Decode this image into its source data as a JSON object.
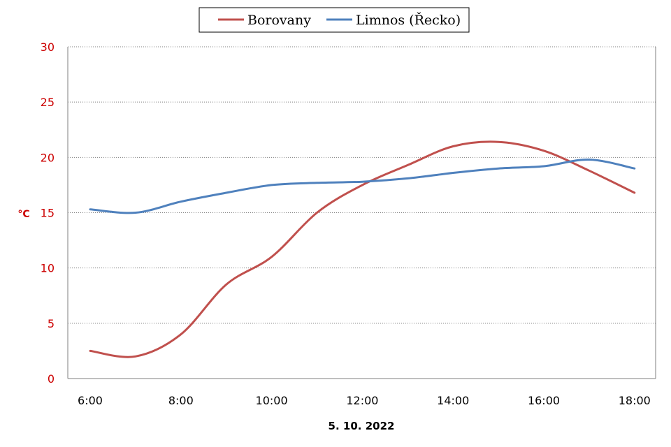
{
  "chart_data": {
    "type": "line",
    "x": [
      "6:00",
      "7:00",
      "8:00",
      "9:00",
      "10:00",
      "11:00",
      "12:00",
      "13:00",
      "14:00",
      "15:00",
      "16:00",
      "17:00",
      "18:00"
    ],
    "xticks": [
      "6:00",
      "8:00",
      "10:00",
      "12:00",
      "14:00",
      "16:00",
      "18:00"
    ],
    "xlabel": "5. 10. 2022",
    "ylabel": "°C",
    "ylim": [
      0,
      30
    ],
    "yticks": [
      0,
      5,
      10,
      15,
      20,
      25,
      30
    ],
    "grid": true,
    "legend_position": "top-center",
    "series": [
      {
        "name": "Borovany",
        "color": "#c0504d",
        "values": [
          2.5,
          2.0,
          4.0,
          8.5,
          11.0,
          15.0,
          17.5,
          19.3,
          21.0,
          21.4,
          20.6,
          18.8,
          16.8
        ]
      },
      {
        "name": "Limnos (Řecko)",
        "color": "#4f81bd",
        "values": [
          15.3,
          15.0,
          16.0,
          16.8,
          17.5,
          17.7,
          17.8,
          18.1,
          18.6,
          19.0,
          19.2,
          19.8,
          19.0
        ]
      }
    ]
  }
}
